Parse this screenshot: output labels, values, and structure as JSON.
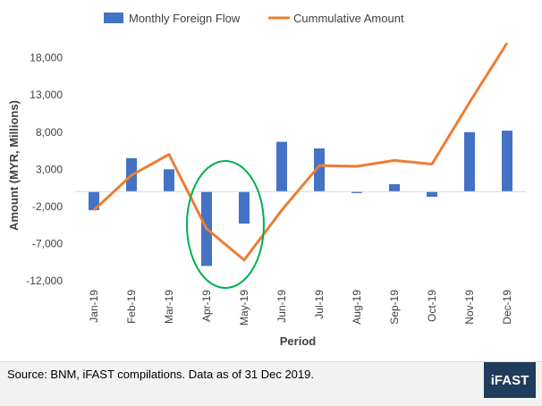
{
  "chart_data": {
    "type": "bar+line",
    "categories": [
      "Jan-19",
      "Feb-19",
      "Mar-19",
      "Apr-19",
      "May-19",
      "Jun-19",
      "Jul-19",
      "Aug-19",
      "Sep-19",
      "Oct-19",
      "Nov-19",
      "Dec-19"
    ],
    "series": [
      {
        "name": "Monthly Foreign Flow",
        "type": "bar",
        "color": "#4472c4",
        "values": [
          -2500,
          4500,
          3000,
          -10000,
          -4300,
          6700,
          5800,
          -200,
          1000,
          -700,
          8000,
          8200
        ]
      },
      {
        "name": "Cummulative Amount",
        "type": "line",
        "color": "#ed7d31",
        "values": [
          -2500,
          2200,
          5000,
          -5000,
          -9200,
          -2500,
          3500,
          3400,
          4200,
          3700,
          12000,
          20000
        ]
      }
    ],
    "xlabel": "Period",
    "ylabel": "Amount (MYR, Millions)",
    "yticks": [
      -12000,
      -7000,
      -2000,
      3000,
      8000,
      13000,
      18000
    ],
    "ytick_labels": [
      "-12,000",
      "-7,000",
      "-2,000",
      "3,000",
      "8,000",
      "13,000",
      "18,000"
    ],
    "ylim": [
      -12000,
      20000
    ],
    "grid": false,
    "legend_position": "top",
    "highlight": {
      "shape": "ellipse",
      "color": "#00b050",
      "around": [
        "Apr-19",
        "May-19"
      ]
    }
  },
  "footer": {
    "source": "Source: BNM, iFAST compilations. Data as of 31 Dec 2019.",
    "logo": "iFAST"
  }
}
